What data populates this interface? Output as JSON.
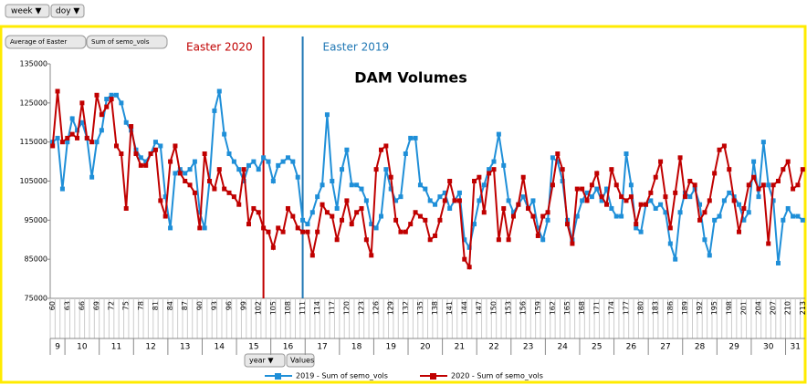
{
  "filters": {
    "top": [
      "week ▼",
      "doy ▼"
    ],
    "series_buttons": [
      "Average of Easter",
      "Sum of semo_vols"
    ],
    "bottom": [
      "year ▼",
      "Values"
    ]
  },
  "chart_data": {
    "type": "line",
    "title": "DAM Volumes",
    "annotations": [
      {
        "text": "Easter 2020",
        "x": 103,
        "color": "#c00000"
      },
      {
        "text": "Easter 2019",
        "x": 111,
        "color": "#1f77b4"
      }
    ],
    "x_start": 60,
    "categories": [
      "60",
      null,
      null,
      "63",
      null,
      null,
      "66",
      null,
      null,
      "69",
      null,
      null,
      "72",
      null,
      null,
      "75",
      null,
      null,
      "78",
      null,
      null,
      "81",
      null,
      null,
      "84",
      null,
      null,
      "87",
      null,
      null,
      "90",
      null,
      null,
      "93",
      null,
      null,
      "96",
      null,
      null,
      "99",
      null,
      null,
      "102",
      null,
      null,
      "105",
      null,
      null,
      "108",
      null,
      null,
      "111",
      null,
      null,
      "114",
      null,
      null,
      "117",
      null,
      null,
      "120",
      null,
      null,
      "123",
      null,
      null,
      "126",
      null,
      null,
      "129",
      null,
      null,
      "132",
      null,
      null,
      "135",
      null,
      null,
      "138",
      null,
      null,
      "141",
      null,
      null,
      "144",
      null,
      null,
      "147",
      null,
      null,
      "150",
      null,
      null,
      "153",
      null,
      null,
      "156",
      null,
      null,
      "159",
      null,
      null,
      "162",
      null,
      null,
      "165",
      null,
      null,
      "168",
      null,
      null,
      "171",
      null,
      null,
      "174",
      null,
      null,
      "177",
      null,
      null,
      "180",
      null,
      null,
      "183",
      null,
      null,
      "186",
      null,
      null,
      "189",
      null,
      null,
      "192",
      null,
      null,
      "195",
      null,
      null,
      "198",
      null,
      null,
      "201",
      null,
      null,
      "204",
      null,
      null,
      "207",
      null,
      null,
      "210",
      null,
      null,
      "213"
    ],
    "week_groups": [
      {
        "label": "9",
        "days": 3
      },
      {
        "label": "10",
        "days": 7
      },
      {
        "label": "11",
        "days": 7
      },
      {
        "label": "12",
        "days": 7
      },
      {
        "label": "13",
        "days": 7
      },
      {
        "label": "14",
        "days": 7
      },
      {
        "label": "15",
        "days": 7
      },
      {
        "label": "16",
        "days": 7
      },
      {
        "label": "17",
        "days": 7
      },
      {
        "label": "18",
        "days": 7
      },
      {
        "label": "19",
        "days": 7
      },
      {
        "label": "20",
        "days": 7
      },
      {
        "label": "21",
        "days": 7
      },
      {
        "label": "22",
        "days": 7
      },
      {
        "label": "23",
        "days": 7
      },
      {
        "label": "24",
        "days": 7
      },
      {
        "label": "25",
        "days": 7
      },
      {
        "label": "26",
        "days": 7
      },
      {
        "label": "27",
        "days": 7
      },
      {
        "label": "28",
        "days": 7
      },
      {
        "label": "29",
        "days": 7
      },
      {
        "label": "30",
        "days": 7
      },
      {
        "label": "31",
        "days": 4
      }
    ],
    "series": [
      {
        "name": "2019 - Sum of semo_vols",
        "color": "#1f8fd8",
        "values": [
          115000,
          116000,
          103000,
          115000,
          121000,
          118000,
          120000,
          116000,
          106000,
          115000,
          118000,
          126000,
          127000,
          127000,
          125000,
          120000,
          118000,
          113000,
          111000,
          110000,
          112000,
          115000,
          114000,
          101000,
          93000,
          107000,
          108000,
          107000,
          108000,
          110000,
          97000,
          93000,
          105000,
          123000,
          128000,
          117000,
          112000,
          110000,
          108000,
          105000,
          109000,
          110000,
          108000,
          111000,
          110000,
          105000,
          109000,
          110000,
          111000,
          110000,
          106000,
          95000,
          94000,
          97000,
          101000,
          104000,
          122000,
          105000,
          98000,
          108000,
          113000,
          104000,
          104000,
          103000,
          100000,
          94000,
          93000,
          96000,
          108000,
          103000,
          100000,
          101000,
          112000,
          116000,
          116000,
          104000,
          103000,
          100000,
          99000,
          101000,
          102000,
          98000,
          100000,
          102000,
          90000,
          88000,
          94000,
          100000,
          104000,
          108000,
          110000,
          117000,
          109000,
          100000,
          97000,
          99000,
          101000,
          98000,
          100000,
          93000,
          90000,
          95000,
          111000,
          110000,
          105000,
          95000,
          90000,
          96000,
          100000,
          102000,
          101000,
          103000,
          100000,
          103000,
          98000,
          96000,
          96000,
          112000,
          104000,
          93000,
          92000,
          99000,
          100000,
          98000,
          99000,
          97000,
          89000,
          85000,
          97000,
          102000,
          101000,
          103000,
          99000,
          90000,
          86000,
          95000,
          96000,
          100000,
          102000,
          101000,
          99000,
          95000,
          97000,
          110000,
          101000,
          115000,
          104000,
          100000,
          84000,
          95000,
          98000,
          96000,
          96000,
          95000
        ]
      },
      {
        "name": "2020 - Sum of semo_vols",
        "color": "#c00000",
        "values": [
          114000,
          128000,
          115000,
          116000,
          117000,
          116000,
          125000,
          116000,
          115000,
          127000,
          122000,
          124000,
          126000,
          114000,
          112000,
          98000,
          119000,
          112000,
          109000,
          109000,
          112000,
          113000,
          100000,
          96000,
          110000,
          114000,
          107000,
          105000,
          104000,
          102000,
          93000,
          112000,
          105000,
          103000,
          108000,
          103000,
          102000,
          101000,
          99000,
          108000,
          94000,
          98000,
          97000,
          93000,
          92000,
          88000,
          93000,
          92000,
          98000,
          96000,
          93000,
          92000,
          92000,
          86000,
          92000,
          99000,
          97000,
          96000,
          90000,
          95000,
          100000,
          94000,
          97000,
          98000,
          90000,
          86000,
          108000,
          113000,
          114000,
          106000,
          95000,
          92000,
          92000,
          94000,
          97000,
          96000,
          95000,
          90000,
          91000,
          95000,
          100000,
          105000,
          100000,
          100000,
          85000,
          83000,
          105000,
          106000,
          97000,
          107000,
          108000,
          90000,
          98000,
          90000,
          96000,
          99000,
          106000,
          98000,
          96000,
          91000,
          96000,
          97000,
          104000,
          112000,
          108000,
          94000,
          89000,
          103000,
          103000,
          100000,
          104000,
          107000,
          101000,
          99000,
          108000,
          104000,
          101000,
          100000,
          101000,
          94000,
          99000,
          99000,
          102000,
          106000,
          110000,
          101000,
          93000,
          102000,
          111000,
          101000,
          105000,
          104000,
          95000,
          97000,
          100000,
          107000,
          113000,
          114000,
          108000,
          100000,
          92000,
          98000,
          104000,
          106000,
          103000,
          104000,
          89000,
          104000,
          105000,
          108000,
          110000,
          103000,
          104000,
          108000
        ]
      }
    ],
    "ylim": [
      75000,
      135000
    ],
    "yticks": [
      75000,
      85000,
      95000,
      105000,
      115000,
      125000,
      135000
    ],
    "grid": false,
    "legend": "bottom"
  }
}
